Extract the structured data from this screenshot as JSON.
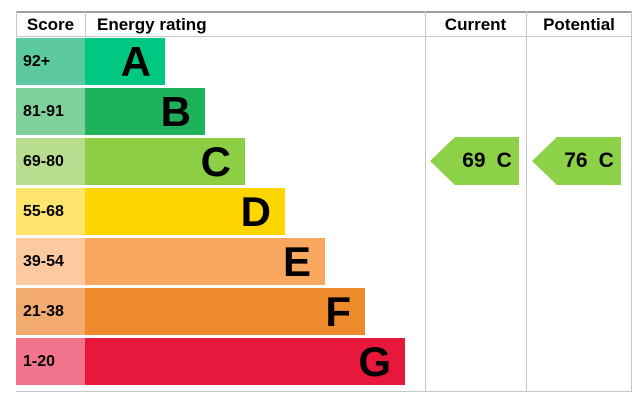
{
  "chart": {
    "headers": {
      "score": "Score",
      "rating": "Energy rating",
      "current": "Current",
      "potential": "Potential"
    },
    "bands": [
      {
        "range": "92+",
        "letter": "A",
        "bar_color": "#00c781",
        "range_color": "#5cc9a1"
      },
      {
        "range": "81-91",
        "letter": "B",
        "bar_color": "#1eb35a",
        "range_color": "#7fd09b"
      },
      {
        "range": "69-80",
        "letter": "C",
        "bar_color": "#8cce44",
        "range_color": "#b9dd8e"
      },
      {
        "range": "55-68",
        "letter": "D",
        "bar_color": "#ffd500",
        "range_color": "#ffe46d"
      },
      {
        "range": "39-54",
        "letter": "E",
        "bar_color": "#f9a75f",
        "range_color": "#fcca9e"
      },
      {
        "range": "21-38",
        "letter": "F",
        "bar_color": "#ee8a2c",
        "range_color": "#f3aa6e"
      },
      {
        "range": "1-20",
        "letter": "G",
        "bar_color": "#e8173c",
        "range_color": "#f1748c"
      }
    ],
    "current": {
      "value": "69",
      "letter": "C",
      "color": "#8dd148"
    },
    "potential": {
      "value": "76",
      "letter": "C",
      "color": "#8dd148"
    }
  },
  "chart_data": {
    "type": "bar",
    "title": "Energy rating",
    "columns": [
      "Score",
      "Energy rating",
      "Current",
      "Potential"
    ],
    "categories": [
      "A",
      "B",
      "C",
      "D",
      "E",
      "F",
      "G"
    ],
    "score_ranges": [
      "92+",
      "81-91",
      "69-80",
      "55-68",
      "39-54",
      "21-38",
      "1-20"
    ],
    "band_colors": [
      "#00c781",
      "#1eb35a",
      "#8cce44",
      "#ffd500",
      "#f9a75f",
      "#ee8a2c",
      "#e8173c"
    ],
    "current": {
      "score": 69,
      "band": "C"
    },
    "potential": {
      "score": 76,
      "band": "C"
    },
    "legend_position": "none",
    "grid": false
  }
}
